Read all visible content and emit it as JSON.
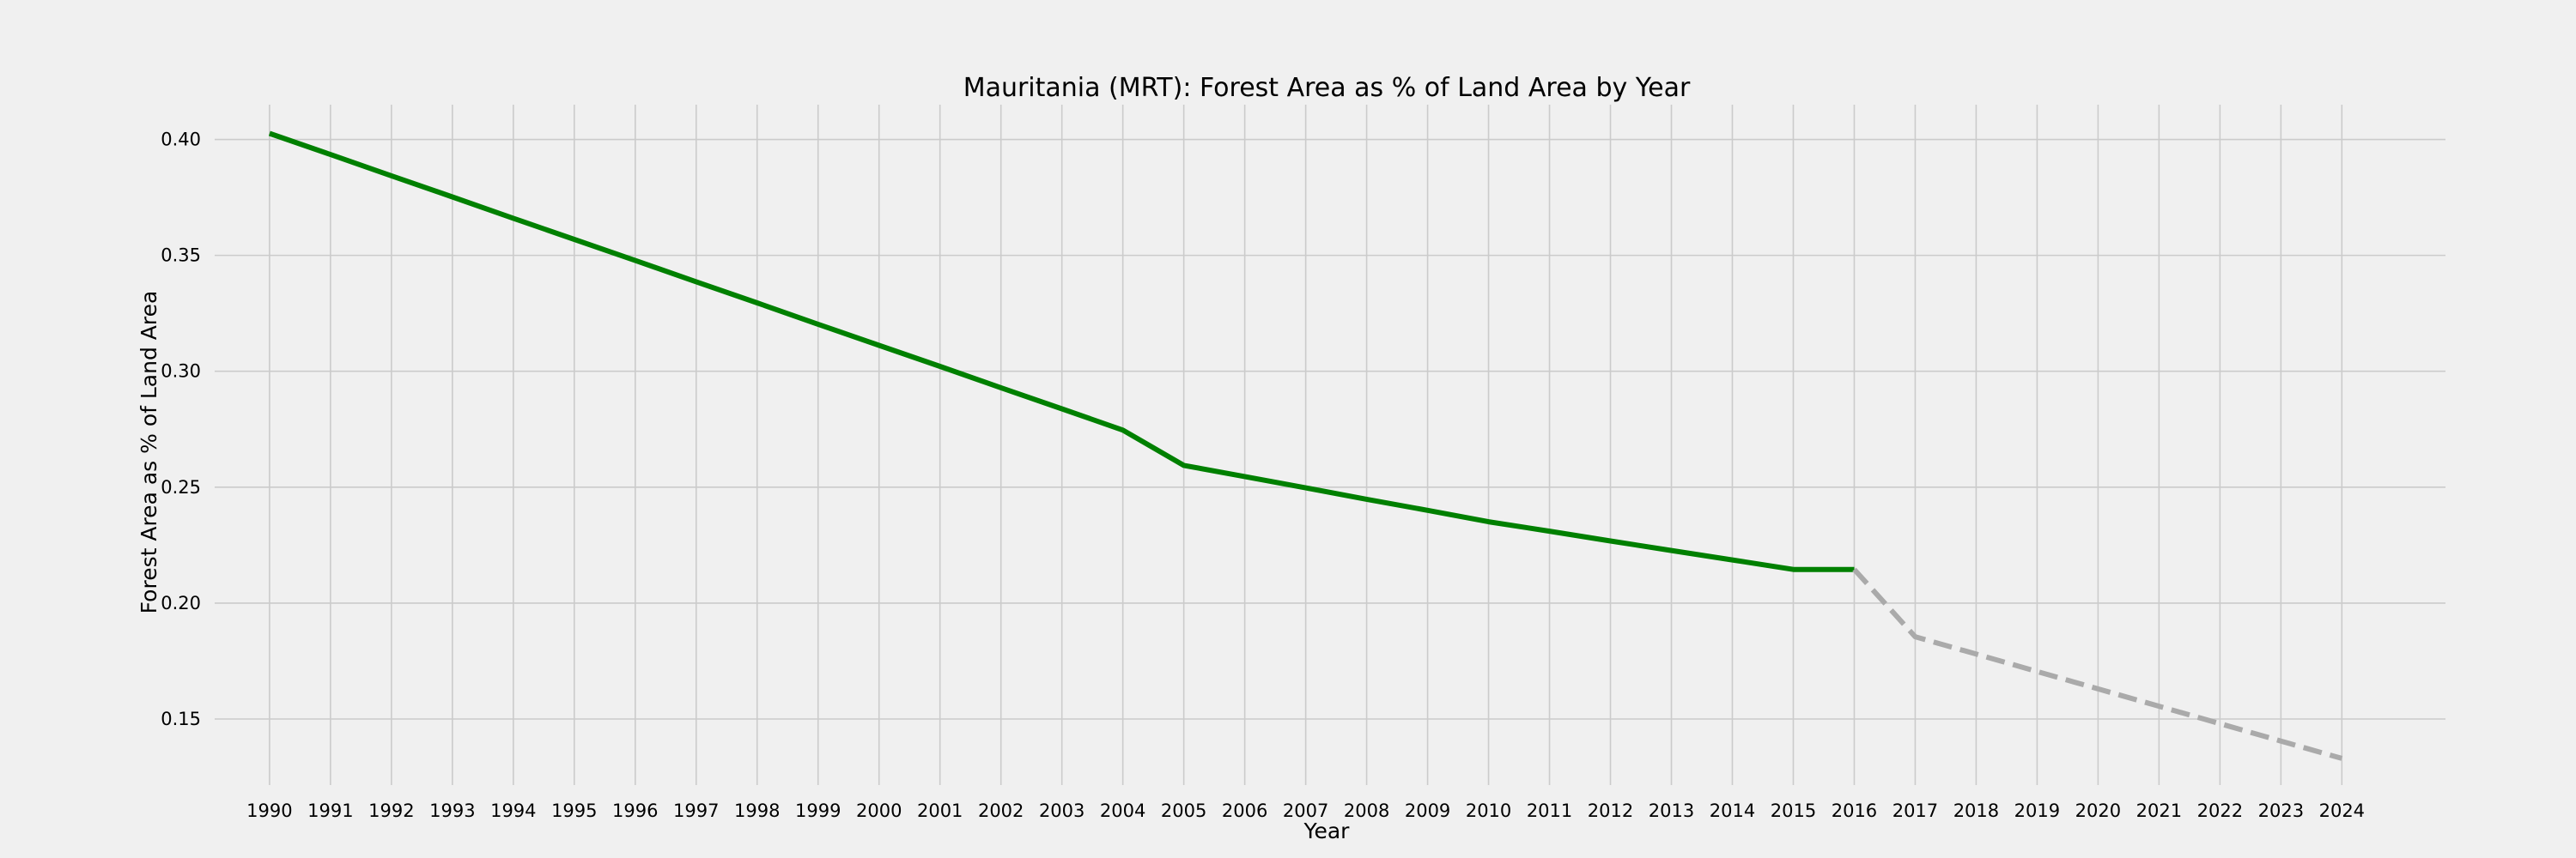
{
  "chart_data": {
    "type": "line",
    "title": "Mauritania (MRT): Forest Area as % of Land Area by Year",
    "xlabel": "Year",
    "ylabel": "Forest Area as % of Land Area",
    "x": [
      1990,
      1991,
      1992,
      1993,
      1994,
      1995,
      1996,
      1997,
      1998,
      1999,
      2000,
      2001,
      2002,
      2003,
      2004,
      2005,
      2006,
      2007,
      2008,
      2009,
      2010,
      2011,
      2012,
      2013,
      2014,
      2015,
      2016,
      2017,
      2018,
      2019,
      2020,
      2021,
      2022,
      2023,
      2024
    ],
    "xlim": [
      1989.1,
      2025.7
    ],
    "ylim": [
      0.1215,
      0.415
    ],
    "yticks": [
      0.15,
      0.2,
      0.25,
      0.3,
      0.35,
      0.4
    ],
    "ytick_labels": [
      "0.15",
      "0.20",
      "0.25",
      "0.30",
      "0.35",
      "0.40"
    ],
    "grid": true,
    "series": [
      {
        "style": "solid",
        "color": "#008000",
        "points": [
          [
            1990,
            0.4026
          ],
          [
            1991,
            0.3935
          ],
          [
            1992,
            0.3843
          ],
          [
            1993,
            0.3752
          ],
          [
            1994,
            0.366
          ],
          [
            1995,
            0.3569
          ],
          [
            1996,
            0.3478
          ],
          [
            1997,
            0.3386
          ],
          [
            1998,
            0.3295
          ],
          [
            1999,
            0.3203
          ],
          [
            2000,
            0.3112
          ],
          [
            2001,
            0.3021
          ],
          [
            2002,
            0.2929
          ],
          [
            2003,
            0.2838
          ],
          [
            2004,
            0.2746
          ],
          [
            2005,
            0.2594
          ],
          [
            2006,
            0.2546
          ],
          [
            2007,
            0.2497
          ],
          [
            2008,
            0.2448
          ],
          [
            2009,
            0.24
          ],
          [
            2010,
            0.2351
          ],
          [
            2011,
            0.231
          ],
          [
            2012,
            0.2268
          ],
          [
            2013,
            0.2227
          ],
          [
            2014,
            0.2186
          ],
          [
            2015,
            0.2145
          ],
          [
            2016,
            0.2145
          ]
        ]
      },
      {
        "style": "dashed",
        "color": "#aaaaaa",
        "points": [
          [
            2016,
            0.2145
          ],
          [
            2017,
            0.1855
          ],
          [
            2018,
            0.178
          ],
          [
            2019,
            0.1705
          ],
          [
            2020,
            0.163
          ],
          [
            2021,
            0.1555
          ],
          [
            2022,
            0.148
          ],
          [
            2023,
            0.1405
          ],
          [
            2024,
            0.133
          ]
        ]
      }
    ]
  }
}
